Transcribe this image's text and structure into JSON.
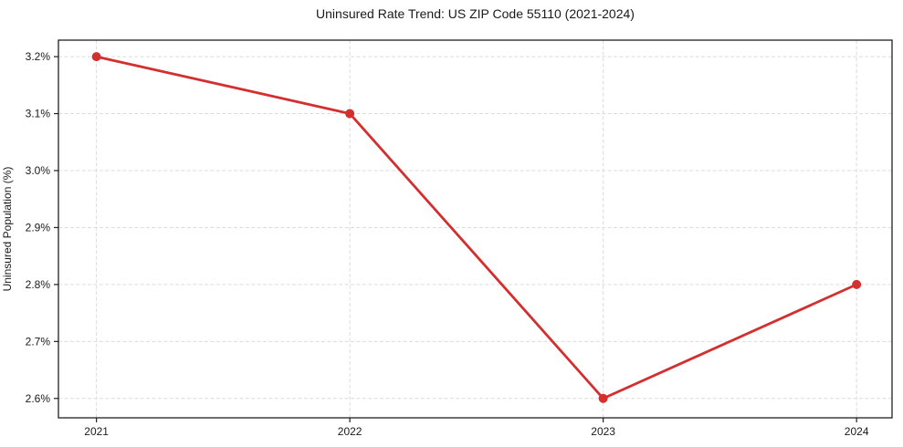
{
  "chart": {
    "title": "Uninsured Rate Trend: US ZIP Code 55110 (2021-2024)",
    "ylabel": "Uninsured Population (%)"
  },
  "chart_data": {
    "type": "line",
    "title": "Uninsured Rate Trend: US ZIP Code 55110 (2021-2024)",
    "xlabel": "",
    "ylabel": "Uninsured Population (%)",
    "x": [
      2021,
      2022,
      2023,
      2024
    ],
    "values": [
      3.2,
      3.1,
      2.6,
      2.8
    ],
    "xticks": [
      2021,
      2022,
      2023,
      2024
    ],
    "xtick_labels": [
      "2021",
      "2022",
      "2023",
      "2024"
    ],
    "yticks": [
      2.6,
      2.7,
      2.8,
      2.9,
      3.0,
      3.1,
      3.2
    ],
    "ytick_labels": [
      "2.6%",
      "2.7%",
      "2.8%",
      "2.9%",
      "3.0%",
      "3.1%",
      "3.2%"
    ],
    "xlim": [
      2020.85,
      2024.14
    ],
    "ylim": [
      2.566,
      3.229
    ],
    "grid": true,
    "grid_style": "dashed",
    "legend": "none",
    "marker": "circle",
    "line_color": "#d32f2f",
    "marker_color": "#d32f2f"
  },
  "colors": {
    "line": "#d32f2f",
    "grid": "#dcdcdc",
    "spine": "#1f1f1f",
    "text": "#1a1a1a",
    "background": "#ffffff"
  }
}
